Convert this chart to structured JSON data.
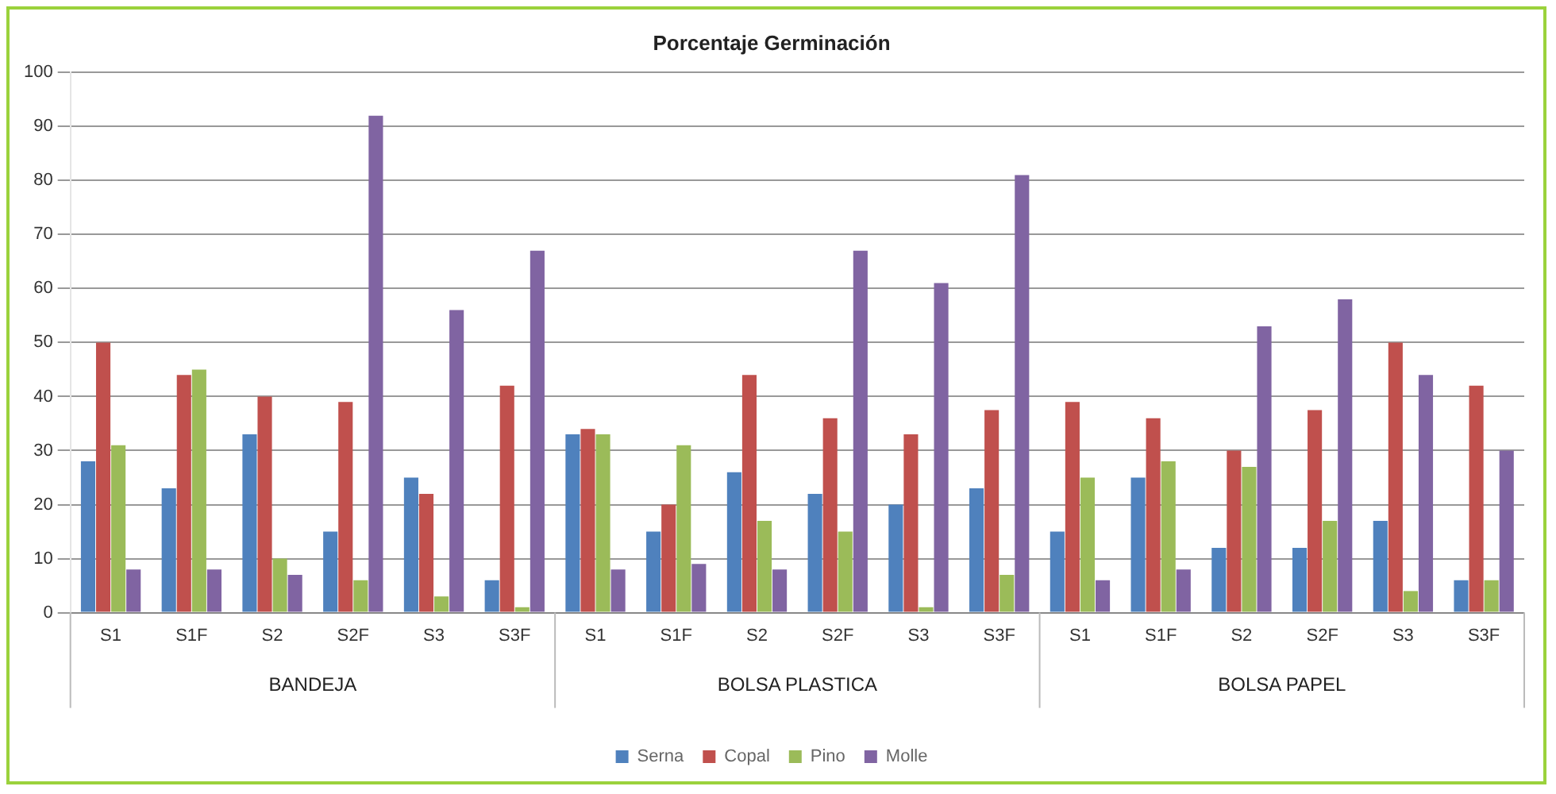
{
  "chart_data": {
    "type": "bar",
    "title": "Porcentaje Germinación",
    "categories": [
      "S1",
      "S1F",
      "S2",
      "S2F",
      "S3",
      "S3F",
      "S1",
      "S1F",
      "S2",
      "S2F",
      "S3",
      "S3F",
      "S1",
      "S1F",
      "S2",
      "S2F",
      "S3",
      "S3F"
    ],
    "series": [
      {
        "name": "Serna",
        "color": "#4f81bd",
        "values": [
          28,
          23,
          33,
          15,
          25,
          6,
          33,
          15,
          26,
          22,
          20,
          23,
          15,
          25,
          12,
          12,
          17,
          6
        ]
      },
      {
        "name": "Copal",
        "color": "#c0504d",
        "values": [
          50,
          44,
          40,
          39,
          22,
          42,
          34,
          20,
          44,
          36,
          33,
          37.5,
          39,
          36,
          30,
          37.5,
          50,
          42
        ]
      },
      {
        "name": "Pino",
        "color": "#9bbb59",
        "values": [
          31,
          45,
          10,
          6,
          3,
          1,
          33,
          31,
          17,
          15,
          1,
          7,
          25,
          28,
          27,
          17,
          4,
          6
        ]
      },
      {
        "name": "Molle",
        "color": "#8064a2",
        "values": [
          8,
          8,
          7,
          92,
          56,
          67,
          8,
          9,
          8,
          67,
          61,
          81,
          6,
          8,
          53,
          58,
          44,
          30
        ]
      }
    ],
    "annotations": [
      "BANDEJA",
      "BOLSA PLASTICA",
      "BOLSA PAPEL"
    ],
    "ylim": [
      0,
      100
    ],
    "yticks": [
      0,
      10,
      20,
      30,
      40,
      50,
      60,
      70,
      80,
      90,
      100
    ],
    "grid": "y",
    "legend": "bottom"
  }
}
